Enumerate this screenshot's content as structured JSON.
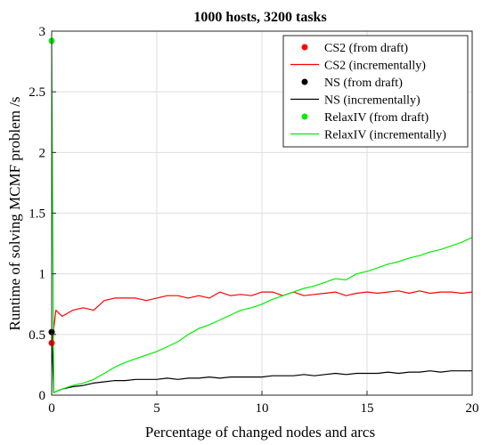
{
  "chart_data": {
    "type": "line",
    "title": "1000 hosts, 3200 tasks",
    "xlabel": "Percentage of changed nodes and arcs",
    "ylabel": "Runtime of solving MCMF problem /s",
    "xlim": [
      0,
      20
    ],
    "ylim": [
      0,
      3
    ],
    "xticks": [
      0,
      5,
      10,
      15,
      20
    ],
    "yticks": [
      0,
      0.5,
      1,
      1.5,
      2,
      2.5,
      3
    ],
    "xtick_labels": [
      "0",
      "5",
      "10",
      "15",
      "20"
    ],
    "ytick_labels": [
      "0",
      "0.5",
      "1",
      "1.5",
      "2",
      "2.5",
      "3"
    ],
    "grid": true,
    "legend_position": "top-right",
    "colors": {
      "cs2": "#ff0000",
      "ns": "#000000",
      "relax": "#00ee00"
    },
    "x": [
      0,
      0.1,
      0.2,
      0.5,
      1,
      1.5,
      2,
      2.5,
      3,
      3.5,
      4,
      4.5,
      5,
      5.5,
      6,
      6.5,
      7,
      7.5,
      8,
      8.5,
      9,
      9.5,
      10,
      10.5,
      11,
      11.5,
      12,
      12.5,
      13,
      13.5,
      14,
      14.5,
      15,
      15.5,
      16,
      16.5,
      17,
      17.5,
      18,
      18.5,
      19,
      19.5,
      20
    ],
    "markers": [
      {
        "name": "CS2 (from draft)",
        "x": 0,
        "y": 0.43,
        "color": "#ff0000"
      },
      {
        "name": "NS (from draft)",
        "x": 0,
        "y": 0.52,
        "color": "#000000"
      },
      {
        "name": "RelaxIV (from draft)",
        "x": 0,
        "y": 2.92,
        "color": "#00ee00"
      }
    ],
    "series": [
      {
        "name": "CS2 (incrementally)",
        "color": "#ff0000",
        "values": [
          0.43,
          0.55,
          0.7,
          0.65,
          0.7,
          0.72,
          0.7,
          0.78,
          0.8,
          0.8,
          0.8,
          0.78,
          0.8,
          0.82,
          0.82,
          0.8,
          0.82,
          0.8,
          0.85,
          0.82,
          0.83,
          0.82,
          0.85,
          0.85,
          0.82,
          0.85,
          0.82,
          0.83,
          0.84,
          0.85,
          0.82,
          0.84,
          0.85,
          0.84,
          0.85,
          0.86,
          0.84,
          0.86,
          0.84,
          0.85,
          0.85,
          0.84,
          0.85
        ]
      },
      {
        "name": "NS (incrementally)",
        "color": "#000000",
        "values": [
          0.52,
          0.02,
          0.03,
          0.05,
          0.07,
          0.08,
          0.1,
          0.11,
          0.12,
          0.12,
          0.13,
          0.13,
          0.13,
          0.14,
          0.13,
          0.14,
          0.14,
          0.15,
          0.14,
          0.15,
          0.15,
          0.15,
          0.15,
          0.16,
          0.16,
          0.16,
          0.17,
          0.16,
          0.17,
          0.18,
          0.17,
          0.18,
          0.18,
          0.18,
          0.19,
          0.18,
          0.19,
          0.19,
          0.2,
          0.19,
          0.2,
          0.2,
          0.2
        ]
      },
      {
        "name": "RelaxIV (incrementally)",
        "color": "#00ee00",
        "values": [
          2.92,
          0.02,
          0.03,
          0.05,
          0.08,
          0.1,
          0.13,
          0.18,
          0.23,
          0.27,
          0.3,
          0.33,
          0.36,
          0.4,
          0.44,
          0.5,
          0.55,
          0.58,
          0.62,
          0.66,
          0.7,
          0.72,
          0.75,
          0.79,
          0.82,
          0.85,
          0.88,
          0.9,
          0.93,
          0.96,
          0.95,
          1.0,
          1.02,
          1.05,
          1.08,
          1.1,
          1.13,
          1.15,
          1.18,
          1.2,
          1.23,
          1.26,
          1.3
        ]
      }
    ]
  }
}
